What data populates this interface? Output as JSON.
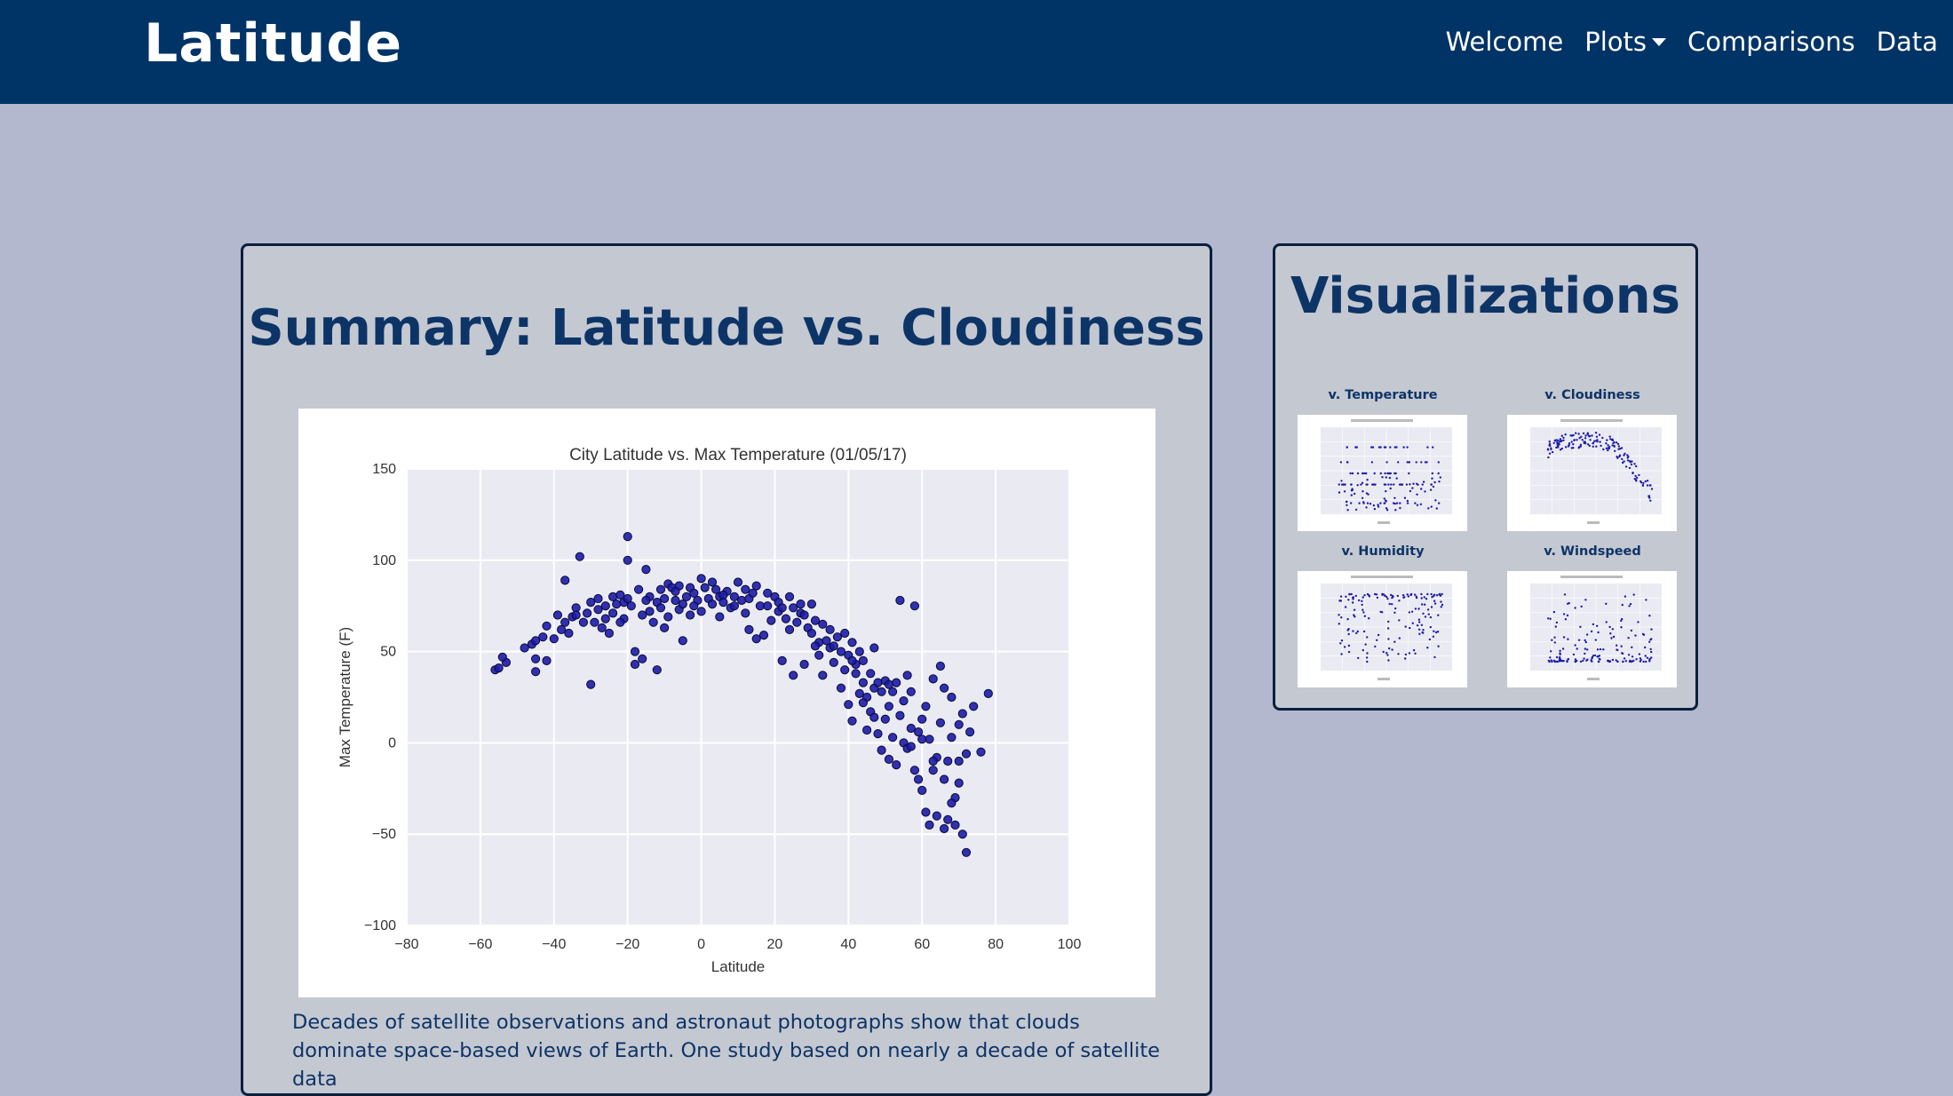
{
  "navbar": {
    "brand": "Latitude",
    "links": [
      "Welcome",
      "Plots",
      "Comparisons",
      "Data"
    ]
  },
  "main": {
    "title": "Summary: Latitude vs. Cloudiness",
    "text": "Decades of satellite observations and astronaut photographs show that clouds dominate space-based views of Earth. One study based on nearly a decade of satellite data"
  },
  "sidebar": {
    "title": "Visualizations",
    "thumbs": [
      {
        "label": "v. Temperature"
      },
      {
        "label": "v. Cloudiness"
      },
      {
        "label": "v. Humidity"
      },
      {
        "label": "v. Windspeed"
      }
    ]
  },
  "colors": {
    "navbar": "#003366",
    "background": "#b3b8cf",
    "panel": "#c4c8d1",
    "title": "#0d3466",
    "plot_bg": "#eaeaf2",
    "point": "#1c1ca8"
  },
  "chart_data": {
    "type": "scatter",
    "title": "City Latitude vs. Max Temperature (01/05/17)",
    "xlabel": "Latitude",
    "ylabel": "Max Temperature (F)",
    "xlim": [
      -80,
      100
    ],
    "ylim": [
      -100,
      150
    ],
    "xticks": [
      -80,
      -60,
      -40,
      -20,
      0,
      20,
      40,
      60,
      80,
      100
    ],
    "yticks": [
      -100,
      -50,
      0,
      50,
      100,
      150
    ],
    "xtick_labels": [
      "−80",
      "−60",
      "−40",
      "−20",
      "0",
      "20",
      "40",
      "60",
      "80",
      "100"
    ],
    "ytick_labels": [
      "−100",
      "−50",
      "0",
      "50",
      "100",
      "150"
    ],
    "grid": true,
    "series": [
      {
        "points": [
          [
            -56,
            40
          ],
          [
            -55,
            41
          ],
          [
            -53,
            44
          ],
          [
            -46,
            54
          ],
          [
            -45,
            56
          ],
          [
            -45,
            46
          ],
          [
            -45,
            39
          ],
          [
            -42,
            45
          ],
          [
            -42,
            64
          ],
          [
            -40,
            57
          ],
          [
            -38,
            62
          ],
          [
            -37,
            66
          ],
          [
            -37,
            89
          ],
          [
            -36,
            60
          ],
          [
            -35,
            69
          ],
          [
            -34,
            74
          ],
          [
            -34,
            70
          ],
          [
            -33,
            102
          ],
          [
            -32,
            66
          ],
          [
            -31,
            71
          ],
          [
            -30,
            32
          ],
          [
            -30,
            77
          ],
          [
            -29,
            66
          ],
          [
            -28,
            73
          ],
          [
            -27,
            63
          ],
          [
            -26,
            75
          ],
          [
            -25,
            60
          ],
          [
            -24,
            80
          ],
          [
            -24,
            71
          ],
          [
            -23,
            76
          ],
          [
            -22,
            81
          ],
          [
            -21,
            77
          ],
          [
            -21,
            68
          ],
          [
            -20,
            113
          ],
          [
            -20,
            100
          ],
          [
            -20,
            79
          ],
          [
            -19,
            75
          ],
          [
            -18,
            50
          ],
          [
            -18,
            43
          ],
          [
            -17,
            84
          ],
          [
            -16,
            70
          ],
          [
            -16,
            46
          ],
          [
            -15,
            95
          ],
          [
            -14,
            80
          ],
          [
            -14,
            72
          ],
          [
            -13,
            66
          ],
          [
            -12,
            40
          ],
          [
            -12,
            77
          ],
          [
            -11,
            84
          ],
          [
            -10,
            63
          ],
          [
            -10,
            79
          ],
          [
            -9,
            87
          ],
          [
            -9,
            69
          ],
          [
            -8,
            85
          ],
          [
            -7,
            78
          ],
          [
            -6,
            73
          ],
          [
            -6,
            86
          ],
          [
            -5,
            76
          ],
          [
            -5,
            56
          ],
          [
            -4,
            80
          ],
          [
            -3,
            85
          ],
          [
            -3,
            70
          ],
          [
            -2,
            82
          ],
          [
            -1,
            78
          ],
          [
            0,
            90
          ],
          [
            0,
            72
          ],
          [
            1,
            85
          ],
          [
            2,
            79
          ],
          [
            3,
            76
          ],
          [
            4,
            84
          ],
          [
            5,
            69
          ],
          [
            5,
            80
          ],
          [
            6,
            77
          ],
          [
            7,
            83
          ],
          [
            8,
            74
          ],
          [
            9,
            80
          ],
          [
            10,
            88
          ],
          [
            11,
            78
          ],
          [
            12,
            84
          ],
          [
            13,
            62
          ],
          [
            13,
            79
          ],
          [
            14,
            82
          ],
          [
            15,
            57
          ],
          [
            15,
            86
          ],
          [
            16,
            75
          ],
          [
            17,
            59
          ],
          [
            18,
            82
          ],
          [
            19,
            67
          ],
          [
            20,
            80
          ],
          [
            21,
            77
          ],
          [
            21,
            72
          ],
          [
            22,
            74
          ],
          [
            22,
            45
          ],
          [
            23,
            68
          ],
          [
            24,
            80
          ],
          [
            25,
            74
          ],
          [
            25,
            37
          ],
          [
            26,
            66
          ],
          [
            27,
            71
          ],
          [
            28,
            70
          ],
          [
            28,
            43
          ],
          [
            29,
            63
          ],
          [
            30,
            76
          ],
          [
            30,
            60
          ],
          [
            31,
            67
          ],
          [
            32,
            55
          ],
          [
            32,
            48
          ],
          [
            33,
            65
          ],
          [
            33,
            37
          ],
          [
            34,
            56
          ],
          [
            35,
            52
          ],
          [
            35,
            62
          ],
          [
            36,
            44
          ],
          [
            37,
            58
          ],
          [
            38,
            50
          ],
          [
            38,
            30
          ],
          [
            39,
            60
          ],
          [
            39,
            40
          ],
          [
            40,
            48
          ],
          [
            40,
            21
          ],
          [
            41,
            12
          ],
          [
            41,
            55
          ],
          [
            42,
            38
          ],
          [
            42,
            43
          ],
          [
            43,
            50
          ],
          [
            43,
            27
          ],
          [
            44,
            45
          ],
          [
            44,
            33
          ],
          [
            45,
            7
          ],
          [
            45,
            25
          ],
          [
            46,
            38
          ],
          [
            46,
            17
          ],
          [
            47,
            30
          ],
          [
            47,
            52
          ],
          [
            48,
            33
          ],
          [
            48,
            5
          ],
          [
            49,
            28
          ],
          [
            49,
            -4
          ],
          [
            50,
            34
          ],
          [
            50,
            13
          ],
          [
            51,
            20
          ],
          [
            51,
            -9
          ],
          [
            52,
            28
          ],
          [
            52,
            3
          ],
          [
            53,
            33
          ],
          [
            53,
            -12
          ],
          [
            54,
            78
          ],
          [
            54,
            15
          ],
          [
            55,
            23
          ],
          [
            55,
            0
          ],
          [
            56,
            37
          ],
          [
            56,
            -3
          ],
          [
            57,
            8
          ],
          [
            57,
            28
          ],
          [
            58,
            75
          ],
          [
            58,
            -15
          ],
          [
            59,
            -20
          ],
          [
            59,
            6
          ],
          [
            60,
            13
          ],
          [
            60,
            -26
          ],
          [
            61,
            -38
          ],
          [
            61,
            20
          ],
          [
            62,
            2
          ],
          [
            62,
            -45
          ],
          [
            63,
            -15
          ],
          [
            63,
            35
          ],
          [
            64,
            -8
          ],
          [
            64,
            -40
          ],
          [
            65,
            42
          ],
          [
            65,
            11
          ],
          [
            66,
            -20
          ],
          [
            66,
            -47
          ],
          [
            67,
            -42
          ],
          [
            67,
            -10
          ],
          [
            68,
            25
          ],
          [
            68,
            3
          ],
          [
            69,
            -30
          ],
          [
            69,
            -45
          ],
          [
            70,
            -22
          ],
          [
            70,
            10
          ],
          [
            71,
            -50
          ],
          [
            71,
            16
          ],
          [
            72,
            -60
          ],
          [
            72,
            -6
          ],
          [
            73,
            6
          ],
          [
            74,
            20
          ],
          [
            76,
            -5
          ],
          [
            78,
            27
          ],
          [
            -54,
            47
          ],
          [
            -48,
            52
          ],
          [
            -43,
            58
          ],
          [
            -39,
            70
          ],
          [
            -28,
            79
          ],
          [
            -26,
            68
          ],
          [
            -22,
            66
          ],
          [
            -15,
            78
          ],
          [
            -11,
            74
          ],
          [
            -7,
            83
          ],
          [
            -2,
            75
          ],
          [
            3,
            88
          ],
          [
            6,
            81
          ],
          [
            9,
            75
          ],
          [
            12,
            71
          ],
          [
            18,
            75
          ],
          [
            24,
            62
          ],
          [
            27,
            76
          ],
          [
            31,
            53
          ],
          [
            36,
            53
          ],
          [
            41,
            45
          ],
          [
            44,
            22
          ],
          [
            47,
            14
          ],
          [
            51,
            32
          ],
          [
            57,
            -2
          ],
          [
            60,
            2
          ],
          [
            63,
            -10
          ],
          [
            66,
            30
          ],
          [
            68,
            -33
          ],
          [
            70,
            -10
          ]
        ]
      }
    ]
  }
}
